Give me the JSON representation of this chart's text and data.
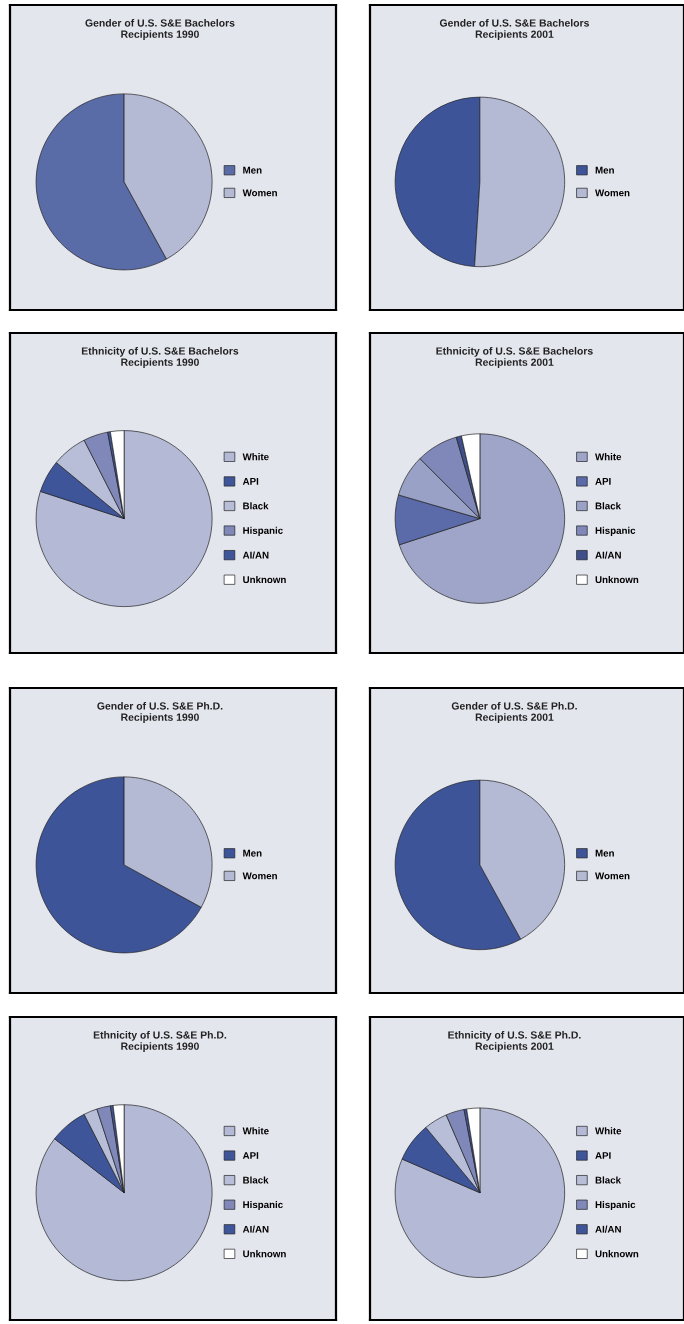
{
  "chart_data": [
    {
      "type": "pie",
      "title": "Gender of U.S. S&E Bachelors\nRecipients 1990",
      "categories": [
        "Men",
        "Women"
      ],
      "values": [
        58,
        42
      ],
      "colors": [
        "#5a6ca8",
        "#b4b9d4"
      ],
      "legend": "right"
    },
    {
      "type": "pie",
      "title": "Gender of U.S. S&E Bachelors\nRecipients 2001",
      "categories": [
        "Men",
        "Women"
      ],
      "values": [
        49,
        51
      ],
      "colors": [
        "#3d5499",
        "#b4b9d4"
      ],
      "legend": "right"
    },
    {
      "type": "pie",
      "title": "Ethnicity of U.S. S&E Bachelors\nRecipients 1990",
      "categories": [
        "White",
        "API",
        "Black",
        "Hispanic",
        "AI/AN",
        "Unknown"
      ],
      "values": [
        80,
        6,
        6.5,
        4.5,
        0.5,
        2.5
      ],
      "colors": [
        "#b4bad6",
        "#3f559a",
        "#b8bdd8",
        "#7f88b8",
        "#3f559a",
        "#ffffff"
      ],
      "legend": "right"
    },
    {
      "type": "pie",
      "title": "Ethnicity of U.S. S&E Bachelors\nRecipients 2001",
      "categories": [
        "White",
        "API",
        "Black",
        "Hispanic",
        "AI/AN",
        "Unknown"
      ],
      "values": [
        70,
        9.5,
        8,
        8,
        1,
        3.5
      ],
      "colors": [
        "#9ea5c8",
        "#5b6aa8",
        "#9aa1c6",
        "#7f88b8",
        "#3f4f8a",
        "#ffffff"
      ],
      "legend": "right"
    },
    {
      "type": "pie",
      "title": "Gender of U.S. S&E Ph.D.\nRecipients 1990",
      "categories": [
        "Men",
        "Women"
      ],
      "values": [
        67,
        33
      ],
      "colors": [
        "#3d5499",
        "#b4b9d4"
      ],
      "legend": "right"
    },
    {
      "type": "pie",
      "title": "Gender of U.S. S&E Ph.D.\nRecipients 2001",
      "categories": [
        "Men",
        "Women"
      ],
      "values": [
        58,
        42
      ],
      "colors": [
        "#3d5499",
        "#b4b9d4"
      ],
      "legend": "right"
    },
    {
      "type": "pie",
      "title": "Ethnicity of U.S. S&E Ph.D.\nRecipients 1990",
      "categories": [
        "White",
        "API",
        "Black",
        "Hispanic",
        "AI/AN",
        "Unknown"
      ],
      "values": [
        85.5,
        7,
        2.5,
        2.5,
        0.5,
        2
      ],
      "colors": [
        "#b4bad6",
        "#3f559a",
        "#b8bdd8",
        "#7f88b8",
        "#3f559a",
        "#ffffff"
      ],
      "legend": "right"
    },
    {
      "type": "pie",
      "title": "Ethnicity of U.S. S&E Ph.D.\nRecipients 2001",
      "categories": [
        "White",
        "API",
        "Black",
        "Hispanic",
        "AI/AN",
        "Unknown"
      ],
      "values": [
        81.5,
        7.5,
        4.5,
        3.5,
        0.5,
        2.5
      ],
      "colors": [
        "#b4bad6",
        "#3f559a",
        "#b8bdd8",
        "#7f88b8",
        "#3f559a",
        "#ffffff"
      ],
      "legend": "right"
    }
  ]
}
